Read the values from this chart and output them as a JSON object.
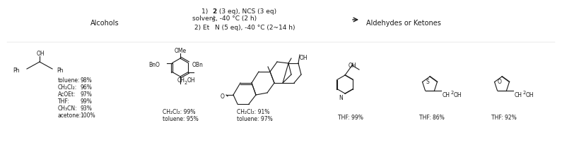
{
  "bg_color": "#ffffff",
  "text_color": "#1a1a1a",
  "font_size": 6.5,
  "small_font": 5.5,
  "tiny_font": 4.8,
  "substrate_yields": [
    {
      "name": "toluene:",
      "val": "98%"
    },
    {
      "name": "CH₂Cl₂:",
      "val": "96%"
    },
    {
      "name": "AcOEt:",
      "val": "97%"
    },
    {
      "name": "THF:",
      "val": "99%"
    },
    {
      "name": "CH₃CN:",
      "val": "93%"
    },
    {
      "name": "acetone:",
      "val": "100%"
    }
  ],
  "substrate2_yields": [
    "CH₂Cl₂: 99%",
    "toluene: 95%"
  ],
  "substrate3_yields": [
    "CH₂Cl₂: 91%",
    "toluene: 97%"
  ],
  "substrate4_yield": "THF: 99%",
  "substrate5_yield": "THF: 86%",
  "substrate6_yield": "THF: 92%"
}
